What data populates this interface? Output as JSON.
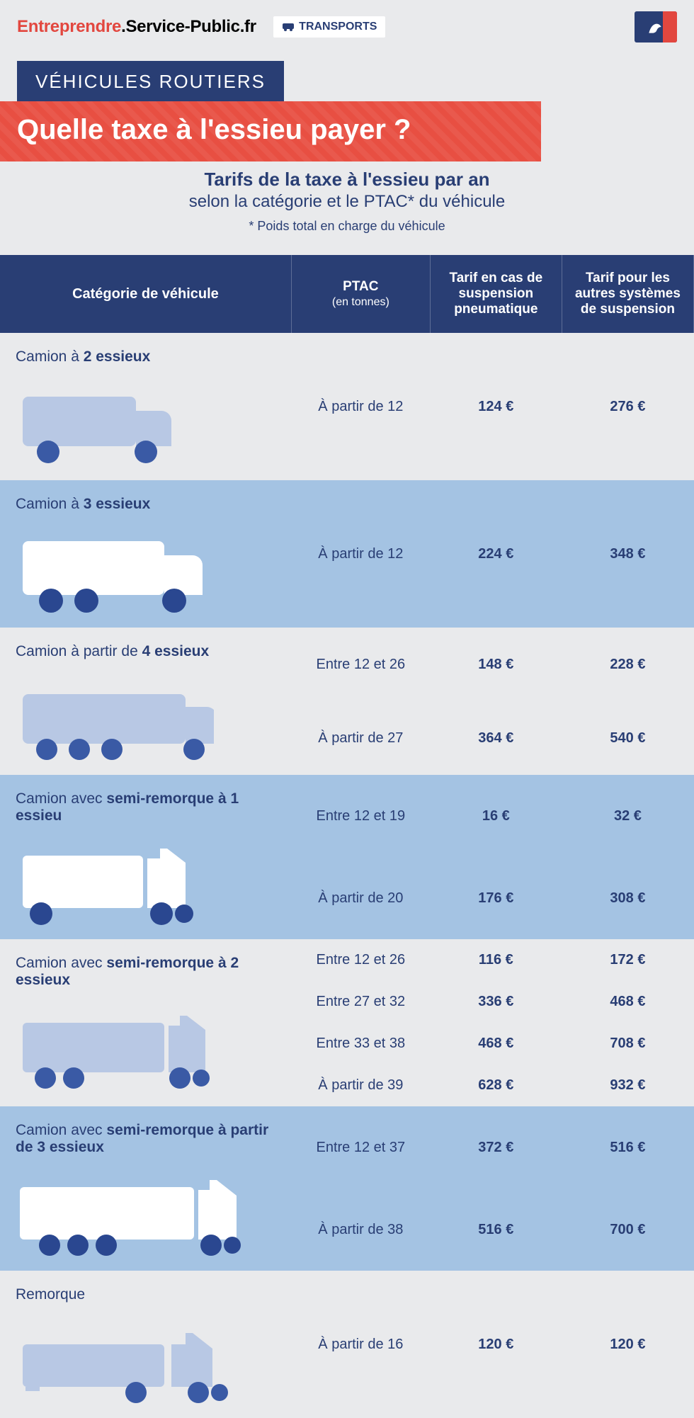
{
  "header": {
    "brand_accent": "Entreprendre",
    "brand_rest": ".Service-Public.fr",
    "tag": "TRANSPORTS"
  },
  "title": {
    "chip": "VÉHICULES ROUTIERS",
    "banner": "Quelle taxe à l'essieu payer ?",
    "intro_line1": "Tarifs de la taxe à l'essieu par an",
    "intro_line2": "selon la catégorie et le PTAC* du véhicule",
    "intro_note": "* Poids total en charge du véhicule"
  },
  "columns": {
    "cat": "Catégorie de véhicule",
    "ptac": "PTAC",
    "ptac_unit": "(en tonnes)",
    "t1": "Tarif en cas de suspension pneumatique",
    "t2": "Tarif pour les autres systèmes de suspension"
  },
  "categories": [
    {
      "id": "2ax",
      "label_pre": "Camion à ",
      "label_bold": "2 essieux",
      "bg": "light",
      "truck": "rigid2",
      "rows": [
        {
          "ptac": "À partir de 12",
          "t1": "124 €",
          "t2": "276 €"
        }
      ]
    },
    {
      "id": "3ax",
      "label_pre": "Camion à ",
      "label_bold": "3 essieux",
      "bg": "blue",
      "truck": "rigid3",
      "rows": [
        {
          "ptac": "À partir de 12",
          "t1": "224 €",
          "t2": "348 €"
        }
      ]
    },
    {
      "id": "4ax",
      "label_pre": "Camion à partir de ",
      "label_bold": "4 essieux",
      "bg": "light",
      "truck": "rigid4",
      "rows": [
        {
          "ptac": "Entre 12 et 26",
          "t1": "148 €",
          "t2": "228 €"
        },
        {
          "ptac": "À partir de 27",
          "t1": "364 €",
          "t2": "540 €"
        }
      ]
    },
    {
      "id": "semi1",
      "label_pre": "Camion avec ",
      "label_bold": "semi-remorque à 1 essieu",
      "bg": "blue",
      "truck": "semi1",
      "rows": [
        {
          "ptac": "Entre 12 et 19",
          "t1": "16 €",
          "t2": "32 €"
        },
        {
          "ptac": "À partir de 20",
          "t1": "176 €",
          "t2": "308 €"
        }
      ]
    },
    {
      "id": "semi2",
      "label_pre": "Camion avec ",
      "label_bold": "semi-remorque à 2 essieux",
      "bg": "light",
      "truck": "semi2",
      "rows": [
        {
          "ptac": "Entre 12 et 26",
          "t1": "116 €",
          "t2": "172 €"
        },
        {
          "ptac": "Entre 27 et 32",
          "t1": "336 €",
          "t2": "468 €"
        },
        {
          "ptac": "Entre 33 et 38",
          "t1": "468 €",
          "t2": "708 €"
        },
        {
          "ptac": "À partir de 39",
          "t1": "628 €",
          "t2": "932 €"
        }
      ]
    },
    {
      "id": "semi3",
      "label_pre": "Camion avec ",
      "label_bold": "semi-remorque à partir de 3 essieux",
      "bg": "blue",
      "truck": "semi3",
      "rows": [
        {
          "ptac": "Entre 12 et 37",
          "t1": "372 €",
          "t2": "516 €"
        },
        {
          "ptac": "À partir de 38",
          "t1": "516 €",
          "t2": "700 €"
        }
      ]
    },
    {
      "id": "trailer",
      "label_pre": "",
      "label_bold": "Remorque",
      "label_bold_weight": "normal",
      "bg": "light",
      "truck": "trailer",
      "rows": [
        {
          "ptac": "À partir de 16",
          "t1": "120 €",
          "t2": "120 €"
        }
      ]
    }
  ],
  "style": {
    "truck_colors": {
      "light_body": "#b8c8e4",
      "blue_body": "#ffffff",
      "light_wheel": "#3a5aa5",
      "blue_wheel": "#2a4790",
      "trailer_tractor": "#b8c8e4"
    }
  }
}
